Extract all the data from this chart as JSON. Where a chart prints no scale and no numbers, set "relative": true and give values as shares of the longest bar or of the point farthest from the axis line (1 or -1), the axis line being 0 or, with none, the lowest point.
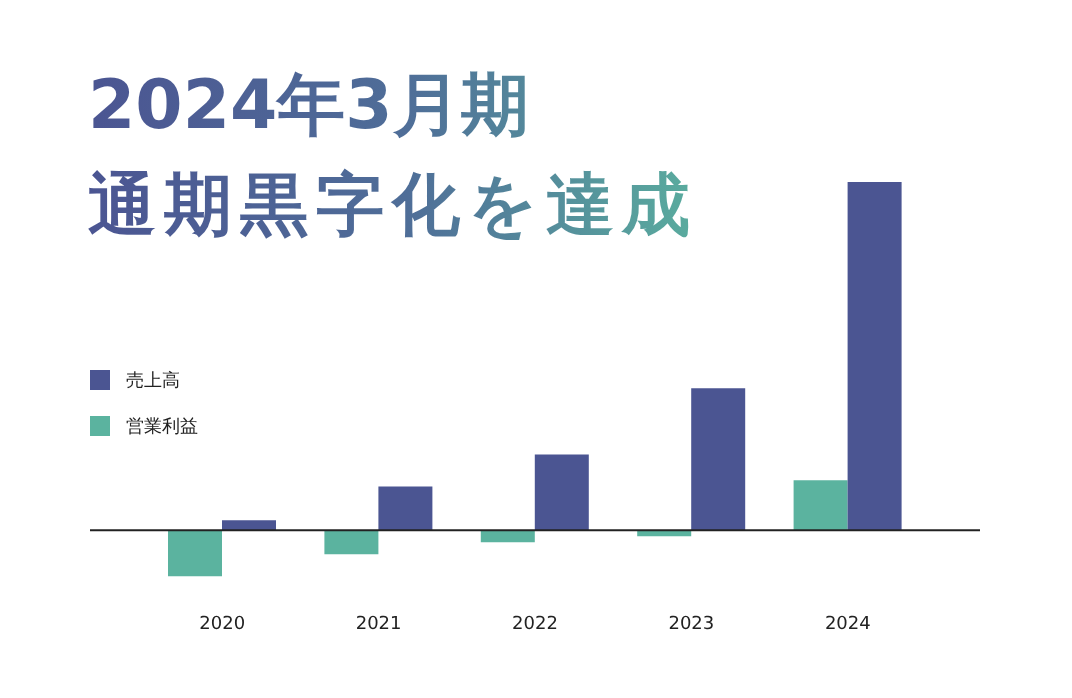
{
  "chart_data": {
    "type": "bar",
    "title": "2024年3月期",
    "subtitle": "通期黒字化を達成",
    "categories": [
      "2020",
      "2021",
      "2022",
      "2023",
      "2024"
    ],
    "relative": true,
    "legend": "left",
    "series": [
      {
        "name": "売上高",
        "color": "#4b5592",
        "values": [
          0.029,
          0.126,
          0.218,
          0.408,
          1
        ]
      },
      {
        "name": "営業利益",
        "color": "#5bb39f",
        "values": [
          -0.132,
          -0.069,
          -0.034,
          -0.017,
          0.144
        ]
      }
    ]
  }
}
